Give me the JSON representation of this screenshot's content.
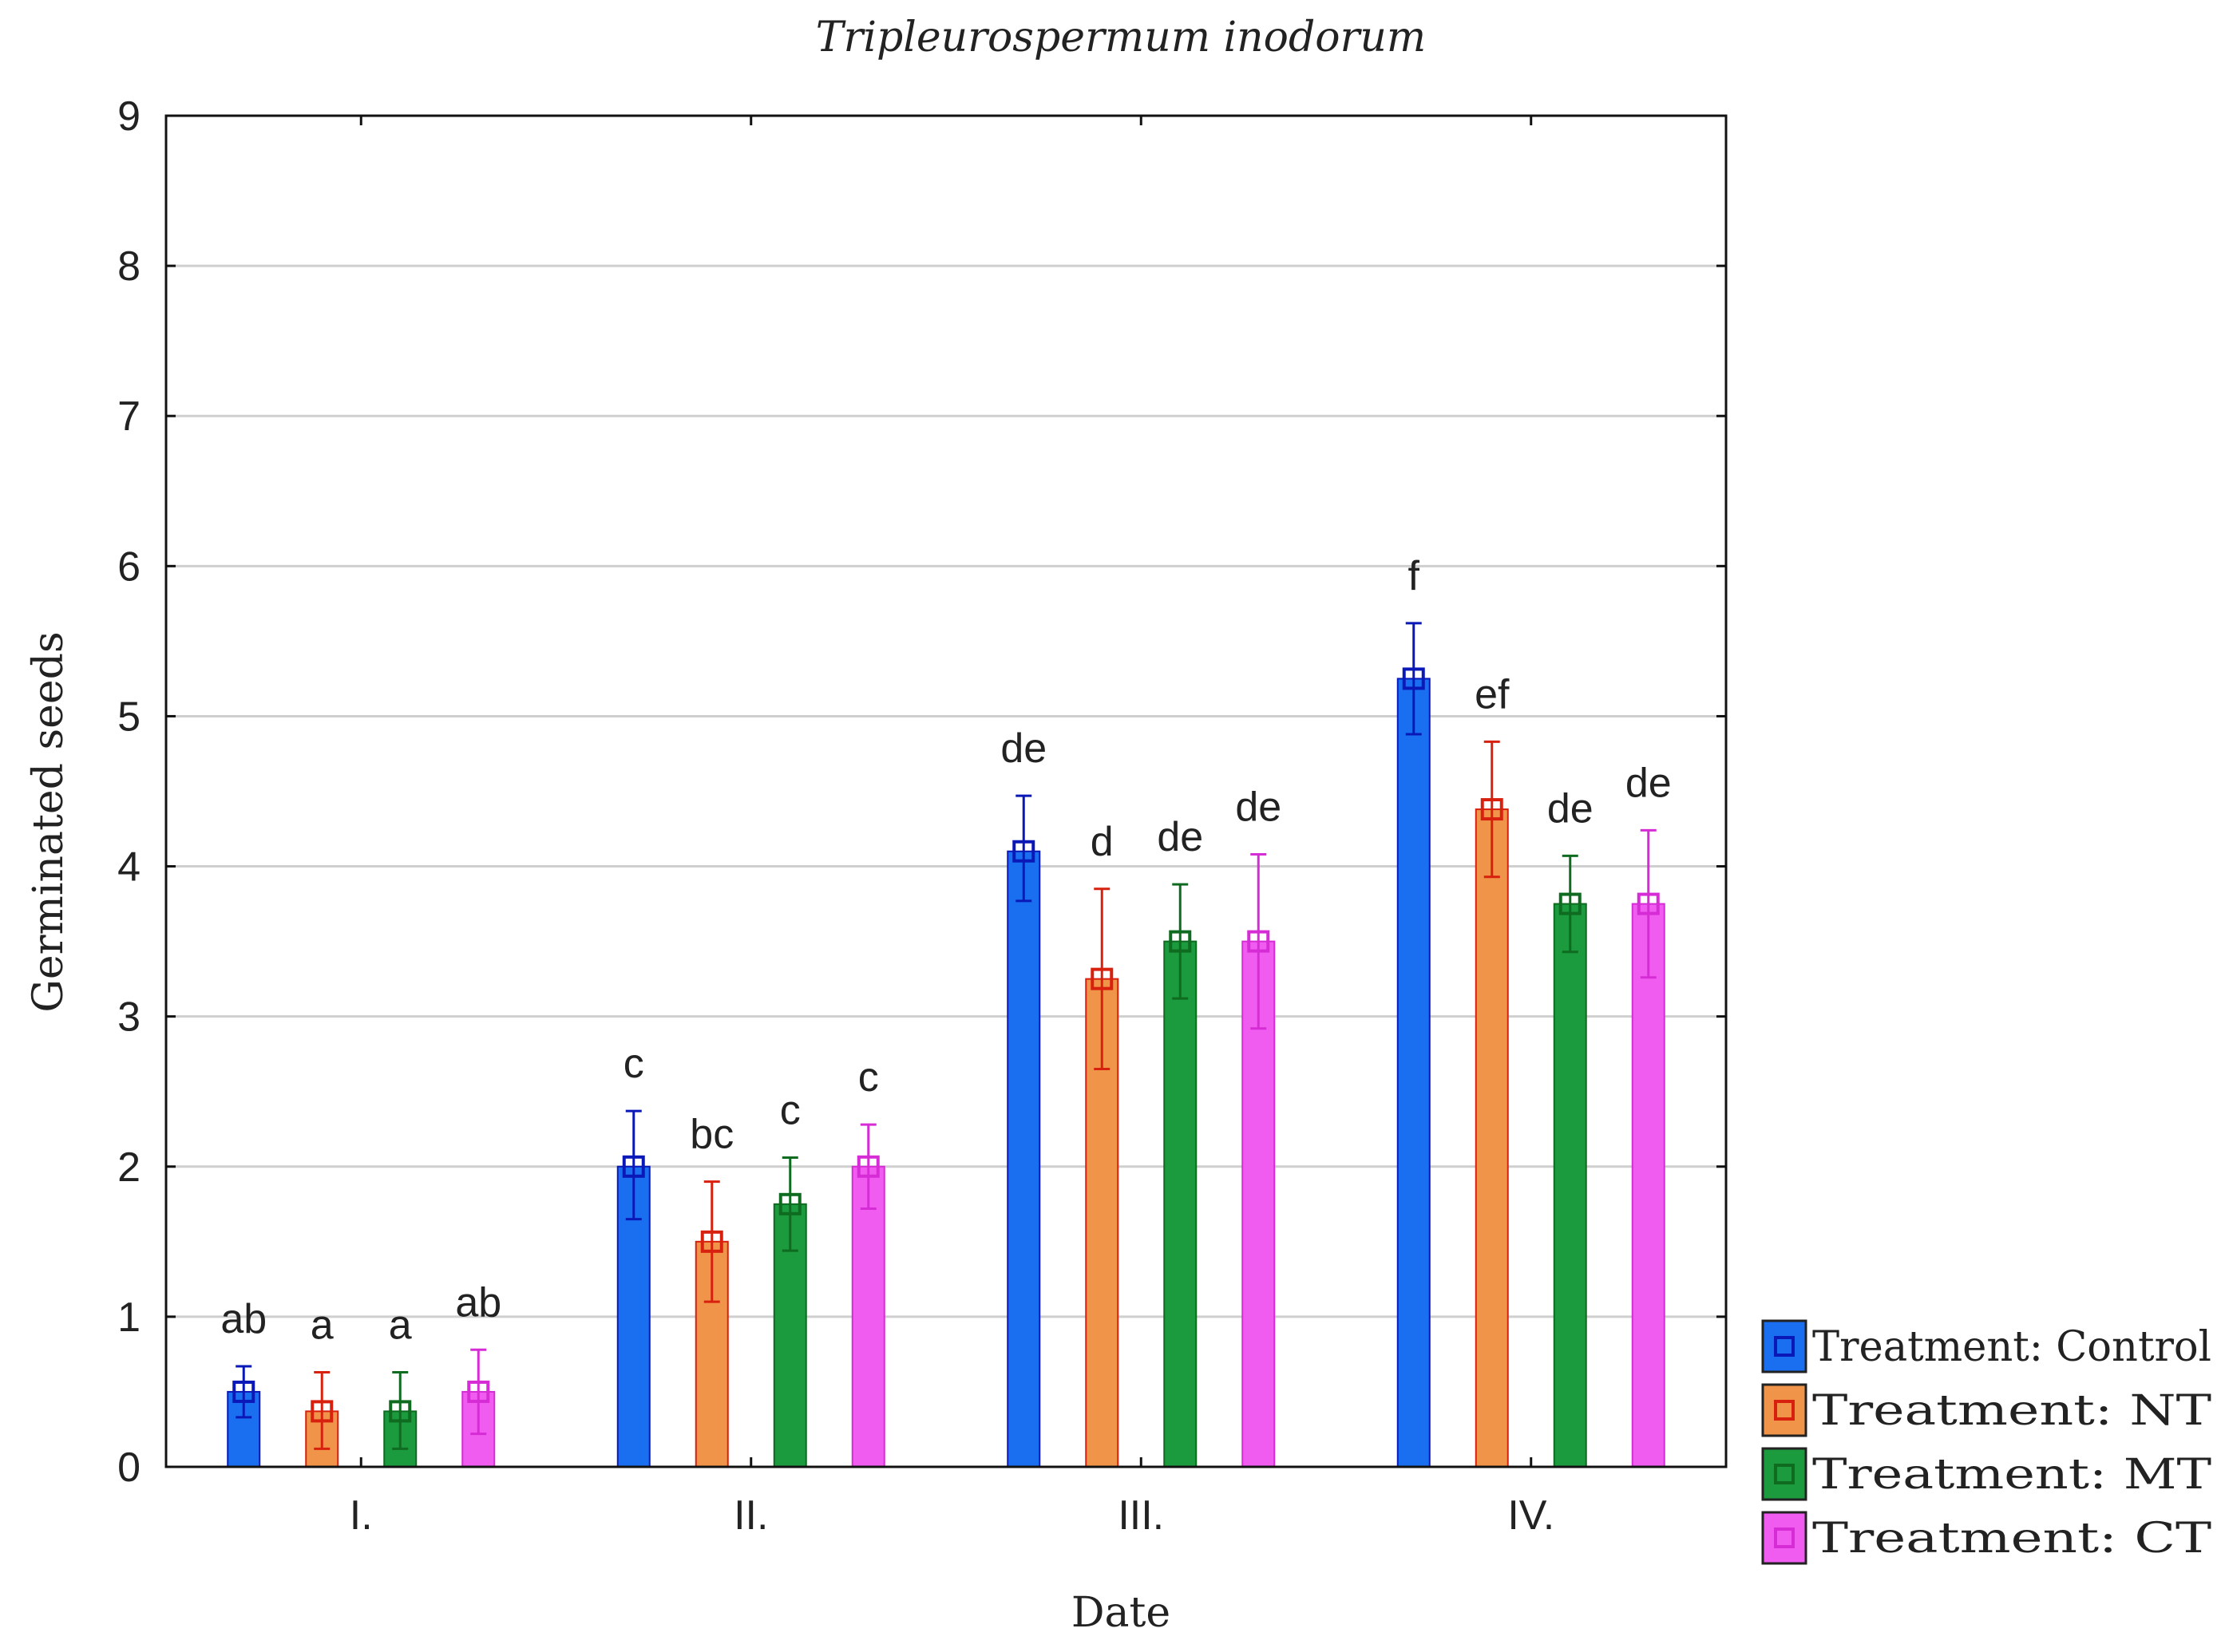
{
  "chart_data": {
    "type": "bar",
    "title": "Tripleurospermum inodorum",
    "xlabel": "Date",
    "ylabel": "Germinated seeds",
    "ylim": [
      0,
      9
    ],
    "yticks": [
      0,
      1,
      2,
      3,
      4,
      5,
      6,
      7,
      8,
      9
    ],
    "grid": true,
    "legend_position": "bottom-right, outside plot",
    "categories": [
      "I.",
      "II.",
      "III.",
      "IV."
    ],
    "series": [
      {
        "name": "Treatment: Control",
        "color": "#1a6ff0",
        "edge_color": "#0a18b8",
        "values": [
          0.5,
          2.0,
          4.1,
          5.25
        ],
        "error_low": [
          0.33,
          1.65,
          3.77,
          4.88
        ],
        "error_high": [
          0.67,
          2.37,
          4.47,
          5.62
        ],
        "labels": [
          "ab",
          "c",
          "de",
          "f"
        ]
      },
      {
        "name": "Treatment: NT",
        "color": "#f0944a",
        "edge_color": "#d8200e",
        "values": [
          0.37,
          1.5,
          3.25,
          4.38
        ],
        "error_low": [
          0.12,
          1.1,
          2.65,
          3.93
        ],
        "error_high": [
          0.63,
          1.9,
          3.85,
          4.83
        ],
        "labels": [
          "a",
          "bc",
          "d",
          "ef"
        ]
      },
      {
        "name": "Treatment: MT",
        "color": "#1b9a3e",
        "edge_color": "#0e6b20",
        "values": [
          0.37,
          1.75,
          3.5,
          3.75
        ],
        "error_low": [
          0.12,
          1.44,
          3.12,
          3.43
        ],
        "error_high": [
          0.63,
          2.06,
          3.88,
          4.07
        ],
        "labels": [
          "a",
          "c",
          "de",
          "de"
        ]
      },
      {
        "name": "Treatment: CT",
        "color": "#f05cf0",
        "edge_color": "#d62cd6",
        "values": [
          0.5,
          2.0,
          3.5,
          3.75
        ],
        "error_low": [
          0.22,
          1.72,
          2.92,
          3.26
        ],
        "error_high": [
          0.78,
          2.28,
          4.08,
          4.24
        ],
        "labels": [
          "ab",
          "c",
          "de",
          "de"
        ]
      }
    ]
  }
}
